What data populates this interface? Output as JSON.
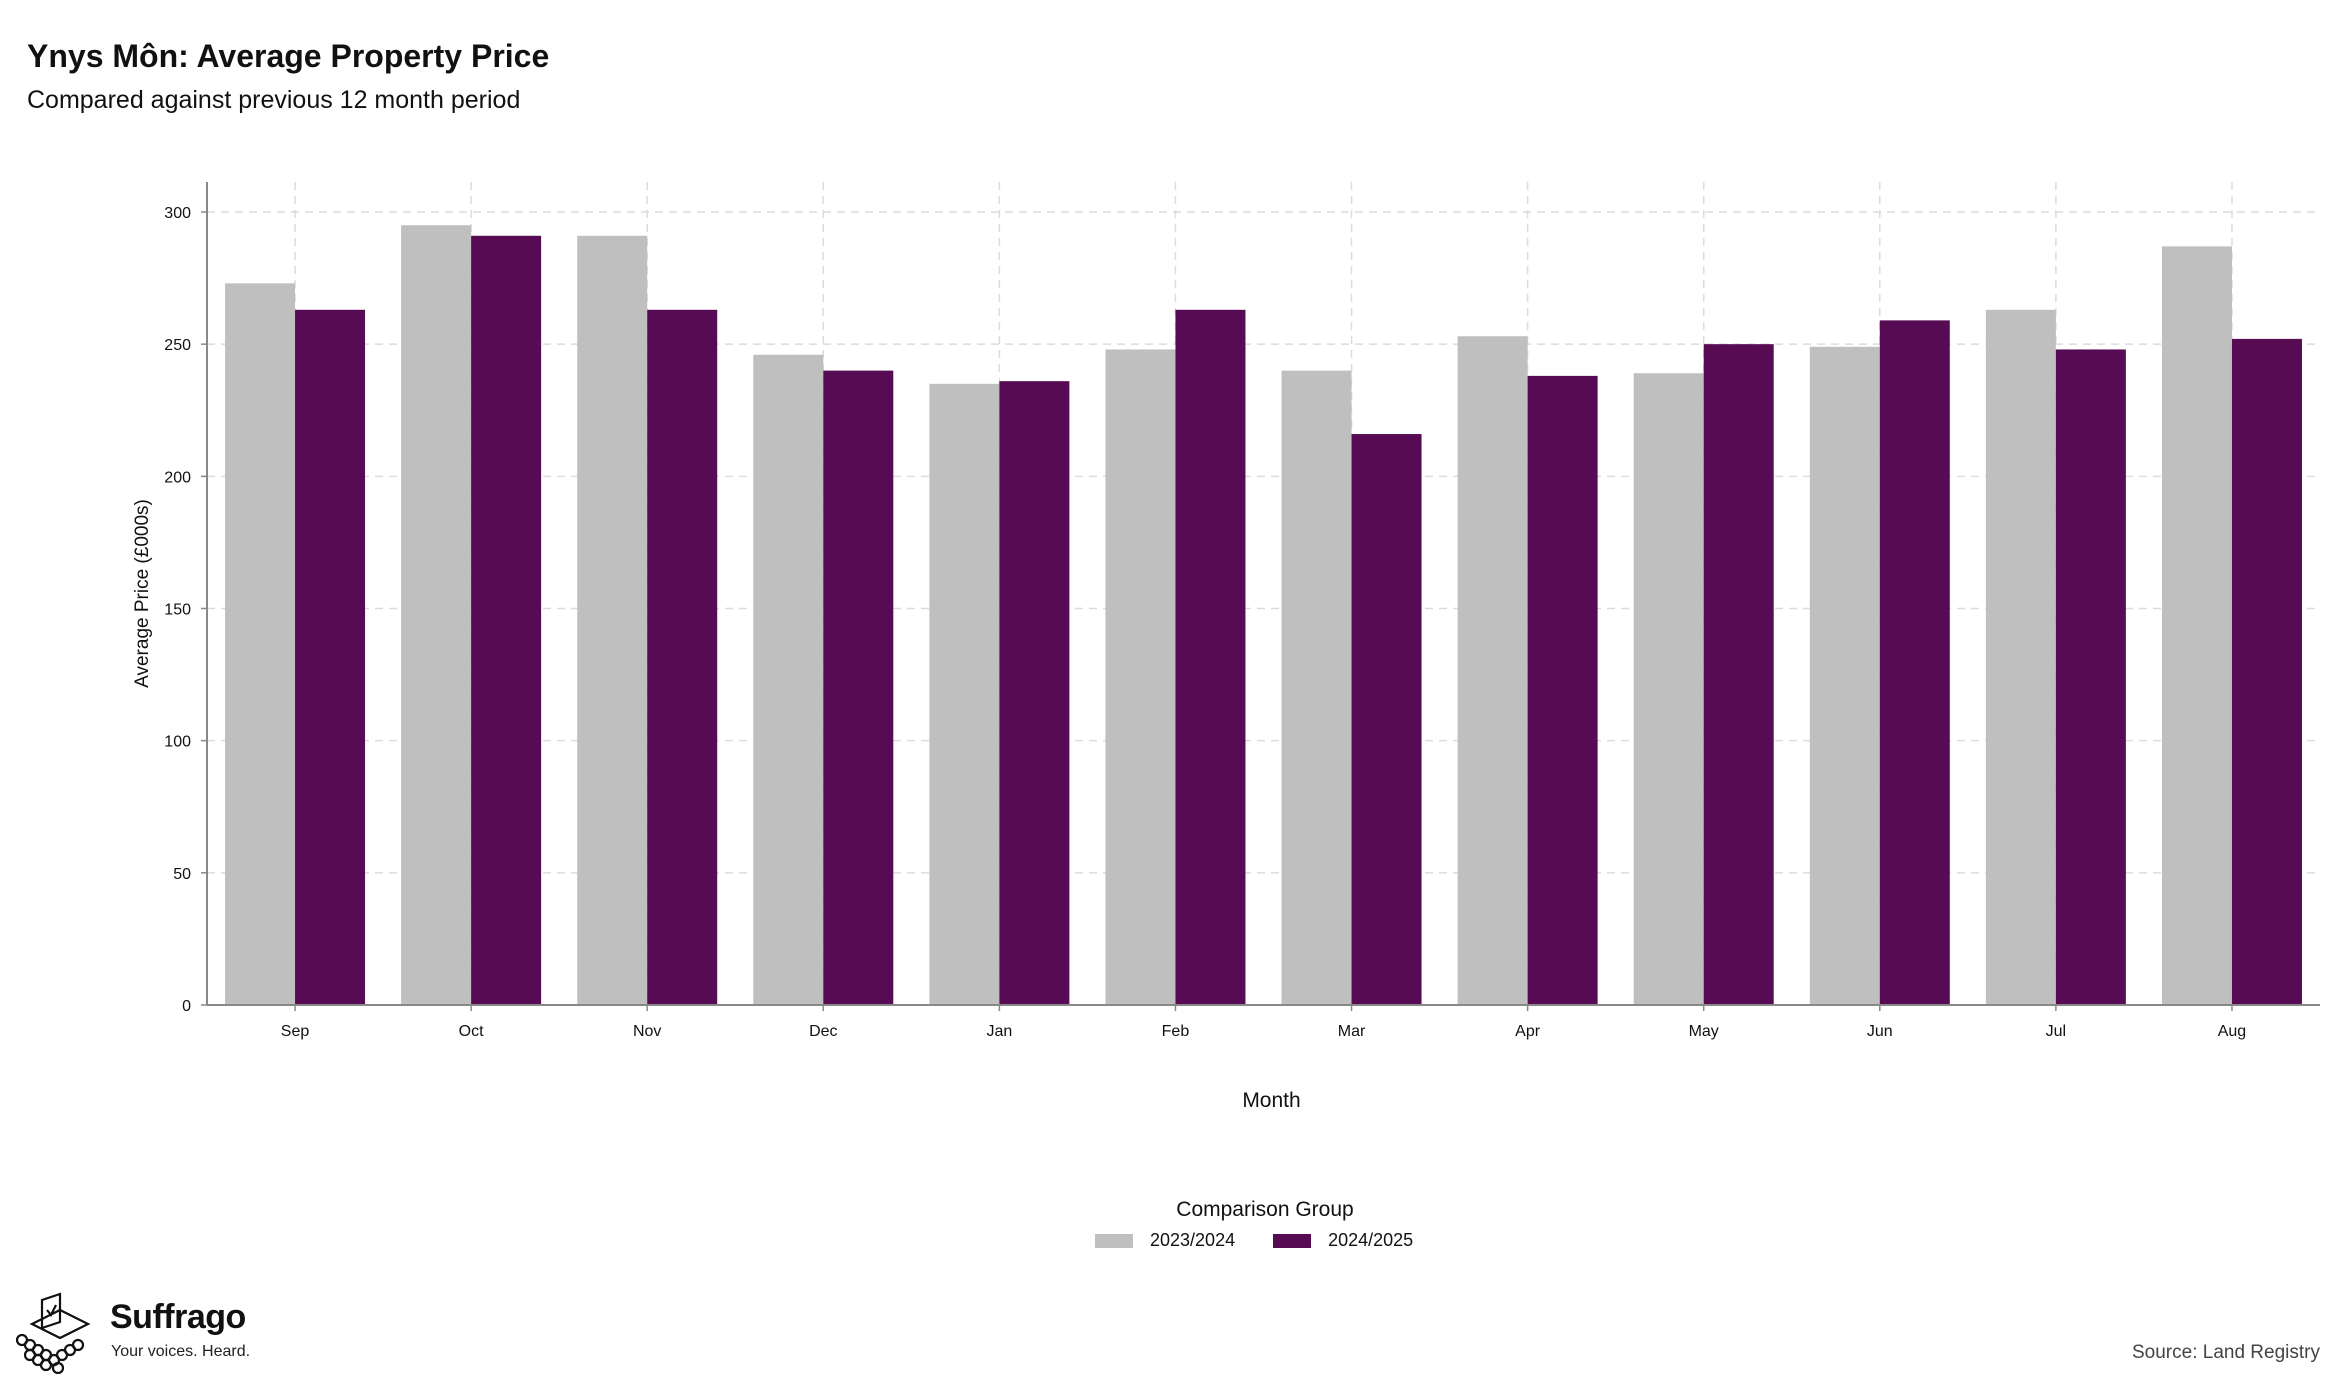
{
  "header": {
    "title": "Ynys Môn: Average Property Price",
    "subtitle": "Compared against previous 12 month period"
  },
  "chart_data": {
    "type": "bar",
    "categories": [
      "Sep",
      "Oct",
      "Nov",
      "Dec",
      "Jan",
      "Feb",
      "Mar",
      "Apr",
      "May",
      "Jun",
      "Jul",
      "Aug"
    ],
    "series": [
      {
        "name": "2023/2024",
        "color": "#bfbfbf",
        "values": [
          273,
          295,
          291,
          246,
          235,
          248,
          240,
          253,
          239,
          249,
          263,
          287
        ]
      },
      {
        "name": "2024/2025",
        "color": "#560b53",
        "values": [
          263,
          291,
          263,
          240,
          236,
          263,
          216,
          238,
          250,
          259,
          248,
          252
        ]
      }
    ],
    "xlabel": "Month",
    "ylabel": "Average Price (£000s)",
    "ylim": [
      0,
      300
    ],
    "yticks": [
      0,
      50,
      100,
      150,
      200,
      250,
      300
    ],
    "grid": true,
    "legend_position": "bottom",
    "legend_title": "Comparison Group"
  },
  "footer": {
    "brand_name": "Suffrago",
    "brand_tagline": "Your voices. Heard.",
    "source": "Source: Land Registry"
  }
}
